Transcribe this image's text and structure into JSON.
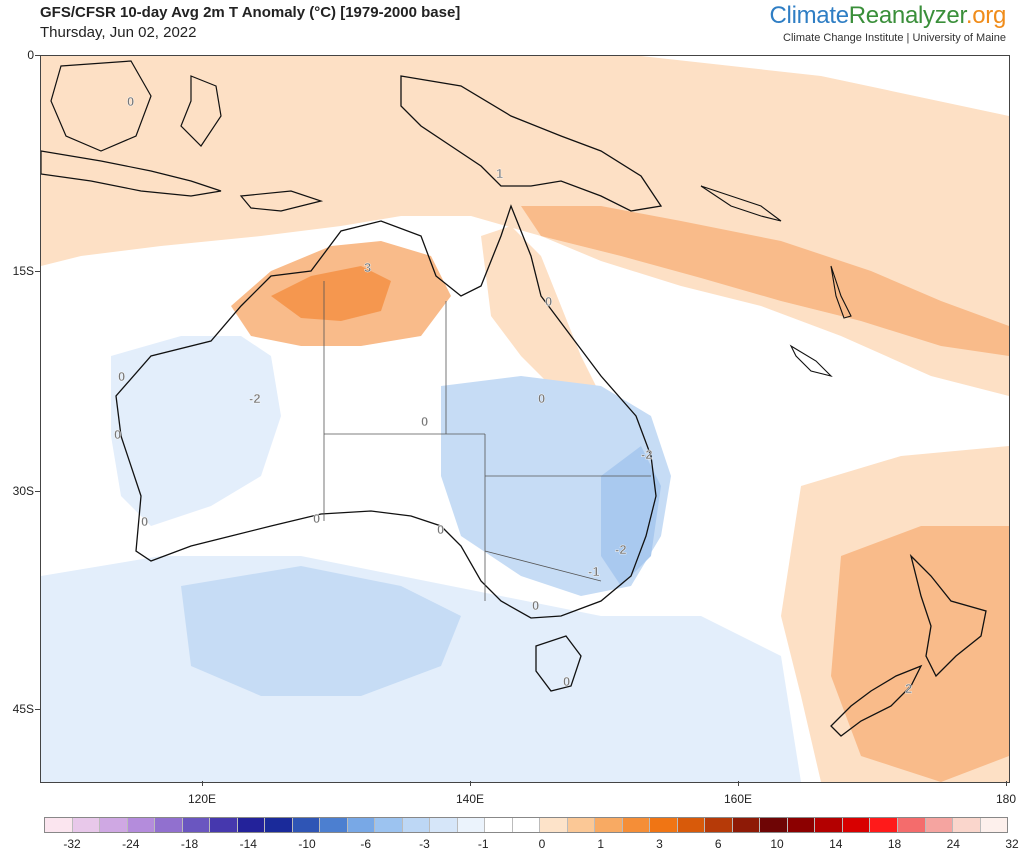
{
  "header": {
    "title": "GFS/CFSR 10-day Avg 2m T Anomaly (°C) [1979-2000 base]",
    "date": "Thursday, Jun 02, 2022"
  },
  "brand": {
    "part1": "Climate",
    "part2": "Reanalyzer",
    "part3": ".org",
    "subtitle": "Climate Change Institute | University of Maine"
  },
  "map": {
    "lat_labels": [
      "0",
      "15S",
      "30S",
      "45S"
    ],
    "lon_labels": [
      "120E",
      "140E",
      "160E",
      "180"
    ],
    "contour_labels": [
      "0",
      "1",
      "3",
      "0",
      "0",
      "-2",
      "0",
      "0",
      "0",
      "-2",
      "0",
      "0",
      "0",
      "-2",
      "-1",
      "0",
      "0",
      "2"
    ],
    "colors": {
      "land_outline": "#111111",
      "warm_light": "#fde0c5",
      "warm_mid": "#f9bb8a",
      "warm_strong": "#f5974f",
      "cool_light": "#e3eefb",
      "cool_mid": "#c6dcf5",
      "cool_strong": "#a9c9ef"
    }
  },
  "colorbar": {
    "labels": [
      "-32",
      "-24",
      "-18",
      "-14",
      "-10",
      "-6",
      "-3",
      "-1",
      "0",
      "1",
      "3",
      "6",
      "10",
      "14",
      "18",
      "24",
      "32"
    ],
    "colors": [
      "#fbe5ef",
      "#e8c8ea",
      "#cfa8e3",
      "#b48cdc",
      "#9170cf",
      "#6a56c0",
      "#4638ae",
      "#23229a",
      "#1a2a9a",
      "#2f55b5",
      "#4c7fd0",
      "#78a8e6",
      "#9cc3f0",
      "#bdd7f5",
      "#d6e6f9",
      "#ebf3fc",
      "#ffffff",
      "#ffffff",
      "#fde3c9",
      "#fbc896",
      "#f8aa63",
      "#f58e37",
      "#f07514",
      "#d85a0a",
      "#b63a08",
      "#8e1a06",
      "#6e0505",
      "#8c0000",
      "#b30000",
      "#d80000",
      "#ff1a1a",
      "#f46c6c",
      "#f5a4a0",
      "#fad6cc",
      "#fdf0ec"
    ]
  }
}
